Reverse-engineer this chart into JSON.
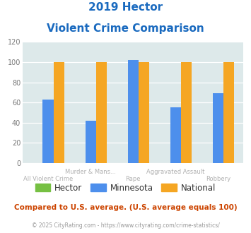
{
  "title_line1": "2019 Hector",
  "title_line2": "Violent Crime Comparison",
  "categories": [
    "All Violent Crime",
    "Murder & Mans...",
    "Rape",
    "Aggravated Assault",
    "Robbery"
  ],
  "top_labels": [
    "",
    "Murder & Mans...",
    "",
    "Aggravated Assault",
    ""
  ],
  "bottom_labels": [
    "All Violent Crime",
    "",
    "Rape",
    "",
    "Robbery"
  ],
  "hector_values": [
    0,
    0,
    0,
    0,
    0
  ],
  "minnesota_values": [
    63,
    42,
    102,
    55,
    69
  ],
  "national_values": [
    100,
    100,
    100,
    100,
    100
  ],
  "hector_color": "#76c043",
  "minnesota_color": "#4d8fec",
  "national_color": "#f5a623",
  "ylim": [
    0,
    120
  ],
  "yticks": [
    0,
    20,
    40,
    60,
    80,
    100,
    120
  ],
  "background_color": "#dde9ea",
  "title_color": "#1a6abf",
  "axis_label_color": "#b0b0b0",
  "legend_label_color": "#333333",
  "footnote1": "Compared to U.S. average. (U.S. average equals 100)",
  "footnote2": "© 2025 CityRating.com - https://www.cityrating.com/crime-statistics/",
  "footnote1_color": "#cc4400",
  "footnote2_color": "#999999",
  "footnote2_link_color": "#4488cc"
}
